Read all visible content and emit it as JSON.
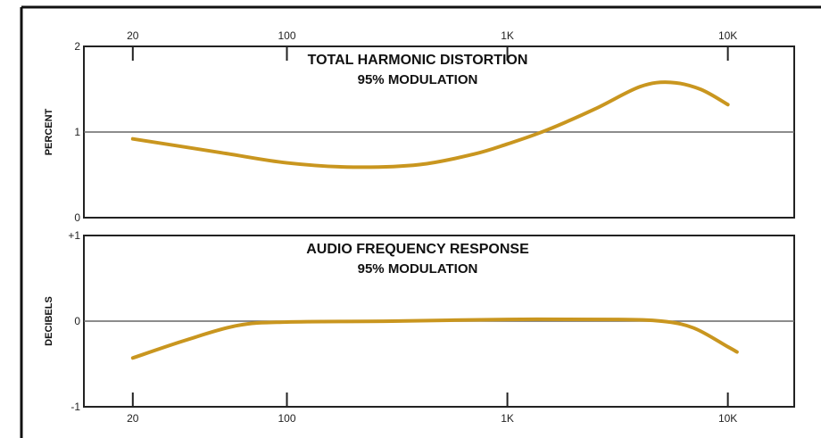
{
  "chart_data": [
    {
      "type": "line",
      "title": "TOTAL HARMONIC DISTORTION",
      "subtitle": "95% MODULATION",
      "ylabel": "PERCENT",
      "xlabel": "",
      "xscale": "log",
      "xlim": [
        12,
        20000
      ],
      "ylim": [
        0,
        2
      ],
      "x_ticks": [
        20,
        100,
        1000,
        10000
      ],
      "x_tick_labels": [
        "20",
        "100",
        "1K",
        "10K"
      ],
      "y_ticks": [
        0,
        1,
        2
      ],
      "y_tick_labels": [
        "0",
        "1",
        "2"
      ],
      "grid": "reference line at 1",
      "series": [
        {
          "color": "#c9961f",
          "x": [
            20,
            50,
            100,
            200,
            400,
            700,
            1000,
            1500,
            2500,
            4000,
            5500,
            7500,
            10000
          ],
          "y": [
            0.92,
            0.76,
            0.64,
            0.59,
            0.62,
            0.74,
            0.86,
            1.02,
            1.27,
            1.53,
            1.58,
            1.5,
            1.32
          ]
        }
      ]
    },
    {
      "type": "line",
      "title": "AUDIO FREQUENCY RESPONSE",
      "subtitle": "95% MODULATION",
      "ylabel": "DECIBELS",
      "xlabel": "",
      "xscale": "log",
      "xlim": [
        12,
        20000
      ],
      "ylim": [
        -1,
        1
      ],
      "x_ticks": [
        20,
        100,
        1000,
        10000
      ],
      "x_tick_labels": [
        "20",
        "100",
        "1K",
        "10K"
      ],
      "y_ticks": [
        -1,
        0,
        1
      ],
      "y_tick_labels": [
        "-1",
        "0",
        "+1"
      ],
      "grid": "reference line at 0",
      "series": [
        {
          "color": "#c9961f",
          "x": [
            20,
            35,
            60,
            100,
            300,
            1000,
            3000,
            5000,
            7000,
            10000,
            11000
          ],
          "y": [
            -0.43,
            -0.22,
            -0.05,
            -0.01,
            0.0,
            0.02,
            0.02,
            0.0,
            -0.08,
            -0.3,
            -0.36
          ]
        }
      ]
    }
  ]
}
